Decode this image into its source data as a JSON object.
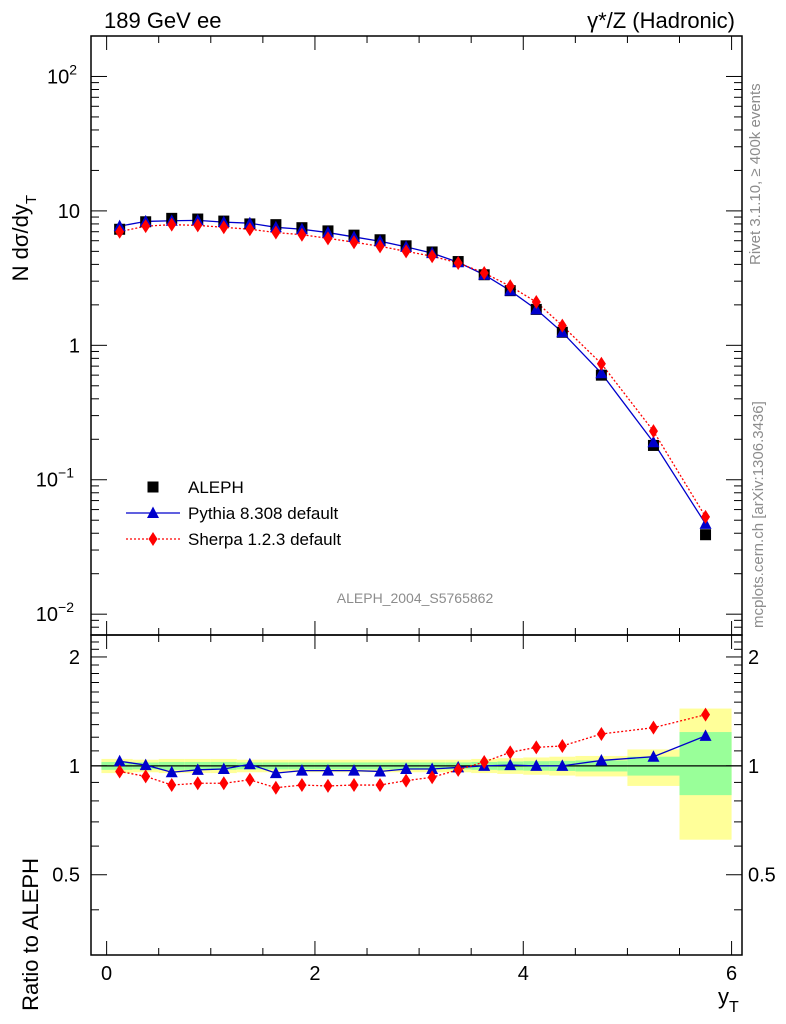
{
  "header": {
    "left": "189 GeV ee",
    "right": "γ*/Z (Hadronic)"
  },
  "side_labels": {
    "rivet": "Rivet 3.1.10, ≥ 400k events",
    "mcplots": "mcplots.cern.ch [arXiv:1306.3436]"
  },
  "watermark": "ALEPH_2004_S5765862",
  "chart_data": {
    "type": "scatter",
    "title": "",
    "xlabel": "y_T",
    "ylabel": "N dσ/dy_T",
    "ratio_ylabel": "Ratio to ALEPH",
    "xlim": [
      -0.15,
      6.1
    ],
    "ylim": [
      0.007,
      200
    ],
    "yscale": "log",
    "ratio_ylim": [
      0.3,
      2.3
    ],
    "grid": false,
    "legend_position": "lower-left",
    "x_ticks": [
      0,
      2,
      4,
      6
    ],
    "y_tick_labels": [
      {
        "value": 0.01,
        "base": "10",
        "exp": "−2"
      },
      {
        "value": 0.1,
        "base": "10",
        "exp": "−1"
      },
      {
        "value": 1,
        "base": "1",
        "exp": ""
      },
      {
        "value": 10,
        "base": "10",
        "exp": ""
      },
      {
        "value": 100,
        "base": "10",
        "exp": "2"
      }
    ],
    "ratio_y_ticks": [
      0.5,
      1,
      2
    ],
    "x": [
      0.125,
      0.375,
      0.625,
      0.875,
      1.125,
      1.375,
      1.625,
      1.875,
      2.125,
      2.375,
      2.625,
      2.875,
      3.125,
      3.375,
      3.625,
      3.875,
      4.125,
      4.375,
      4.75,
      5.25,
      5.75
    ],
    "series": [
      {
        "name": "ALEPH",
        "marker": "square",
        "color": "#000000",
        "values": [
          7.3,
          8.3,
          8.8,
          8.7,
          8.4,
          8.0,
          7.9,
          7.5,
          7.1,
          6.6,
          6.1,
          5.5,
          4.95,
          4.2,
          3.35,
          2.55,
          1.85,
          1.25,
          0.6,
          0.18,
          0.039
        ]
      },
      {
        "name": "Pythia 8.308 default",
        "marker": "triangle",
        "color": "#0000cc",
        "values": [
          7.7,
          8.35,
          8.45,
          8.5,
          8.25,
          8.1,
          7.55,
          7.3,
          6.9,
          6.4,
          5.95,
          5.4,
          4.85,
          4.15,
          3.35,
          2.55,
          1.85,
          1.25,
          0.62,
          0.19,
          0.047
        ],
        "ratio": [
          1.03,
          1.005,
          0.96,
          0.975,
          0.98,
          1.01,
          0.955,
          0.97,
          0.97,
          0.97,
          0.965,
          0.98,
          0.98,
          0.99,
          1.0,
          1.005,
          1.0,
          1.0,
          1.035,
          1.06,
          1.21
        ]
      },
      {
        "name": "Sherpa 1.2.3 default",
        "marker": "diamond",
        "color": "#ff0000",
        "values": [
          7.0,
          7.7,
          7.9,
          7.8,
          7.55,
          7.3,
          6.9,
          6.65,
          6.25,
          5.85,
          5.45,
          5.0,
          4.6,
          4.1,
          3.45,
          2.75,
          2.1,
          1.4,
          0.73,
          0.23,
          0.053
        ],
        "ratio": [
          0.965,
          0.935,
          0.885,
          0.895,
          0.895,
          0.915,
          0.87,
          0.885,
          0.88,
          0.885,
          0.885,
          0.91,
          0.93,
          0.975,
          1.025,
          1.09,
          1.125,
          1.135,
          1.225,
          1.275,
          1.385
        ]
      }
    ],
    "bands": [
      {
        "x0": -0.05,
        "x1": 0.25,
        "yellow": [
          0.955,
          1.045
        ],
        "green": [
          0.975,
          1.025
        ]
      },
      {
        "x0": 0.25,
        "x1": 0.5,
        "yellow": [
          0.96,
          1.04
        ],
        "green": [
          0.978,
          1.022
        ]
      },
      {
        "x0": 0.5,
        "x1": 0.75,
        "yellow": [
          0.955,
          1.045
        ],
        "green": [
          0.975,
          1.025
        ]
      },
      {
        "x0": 0.75,
        "x1": 1.0,
        "yellow": [
          0.955,
          1.045
        ],
        "green": [
          0.975,
          1.025
        ]
      },
      {
        "x0": 1.0,
        "x1": 1.25,
        "yellow": [
          0.955,
          1.045
        ],
        "green": [
          0.975,
          1.025
        ]
      },
      {
        "x0": 1.25,
        "x1": 1.5,
        "yellow": [
          0.96,
          1.04
        ],
        "green": [
          0.978,
          1.022
        ]
      },
      {
        "x0": 1.5,
        "x1": 1.75,
        "yellow": [
          0.96,
          1.04
        ],
        "green": [
          0.978,
          1.022
        ]
      },
      {
        "x0": 1.75,
        "x1": 2.0,
        "yellow": [
          0.96,
          1.04
        ],
        "green": [
          0.978,
          1.022
        ]
      },
      {
        "x0": 2.0,
        "x1": 2.25,
        "yellow": [
          0.96,
          1.04
        ],
        "green": [
          0.978,
          1.022
        ]
      },
      {
        "x0": 2.25,
        "x1": 2.5,
        "yellow": [
          0.96,
          1.04
        ],
        "green": [
          0.978,
          1.022
        ]
      },
      {
        "x0": 2.5,
        "x1": 2.75,
        "yellow": [
          0.96,
          1.04
        ],
        "green": [
          0.978,
          1.022
        ]
      },
      {
        "x0": 2.75,
        "x1": 3.0,
        "yellow": [
          0.96,
          1.04
        ],
        "green": [
          0.978,
          1.022
        ]
      },
      {
        "x0": 3.0,
        "x1": 3.25,
        "yellow": [
          0.96,
          1.04
        ],
        "green": [
          0.978,
          1.022
        ]
      },
      {
        "x0": 3.25,
        "x1": 3.5,
        "yellow": [
          0.96,
          1.04
        ],
        "green": [
          0.978,
          1.022
        ]
      },
      {
        "x0": 3.5,
        "x1": 3.75,
        "yellow": [
          0.955,
          1.045
        ],
        "green": [
          0.975,
          1.025
        ]
      },
      {
        "x0": 3.75,
        "x1": 4.0,
        "yellow": [
          0.95,
          1.05
        ],
        "green": [
          0.972,
          1.028
        ]
      },
      {
        "x0": 4.0,
        "x1": 4.25,
        "yellow": [
          0.945,
          1.055
        ],
        "green": [
          0.97,
          1.03
        ]
      },
      {
        "x0": 4.25,
        "x1": 4.5,
        "yellow": [
          0.94,
          1.06
        ],
        "green": [
          0.968,
          1.032
        ]
      },
      {
        "x0": 4.5,
        "x1": 5.0,
        "yellow": [
          0.935,
          1.065
        ],
        "green": [
          0.965,
          1.035
        ]
      },
      {
        "x0": 5.0,
        "x1": 5.5,
        "yellow": [
          0.88,
          1.11
        ],
        "green": [
          0.94,
          1.06
        ]
      },
      {
        "x0": 5.5,
        "x1": 6.0,
        "yellow": [
          0.625,
          1.44
        ],
        "green": [
          0.83,
          1.24
        ]
      }
    ],
    "colors": {
      "yellow_band": "#ffff99",
      "green_band": "#99ff99"
    }
  }
}
